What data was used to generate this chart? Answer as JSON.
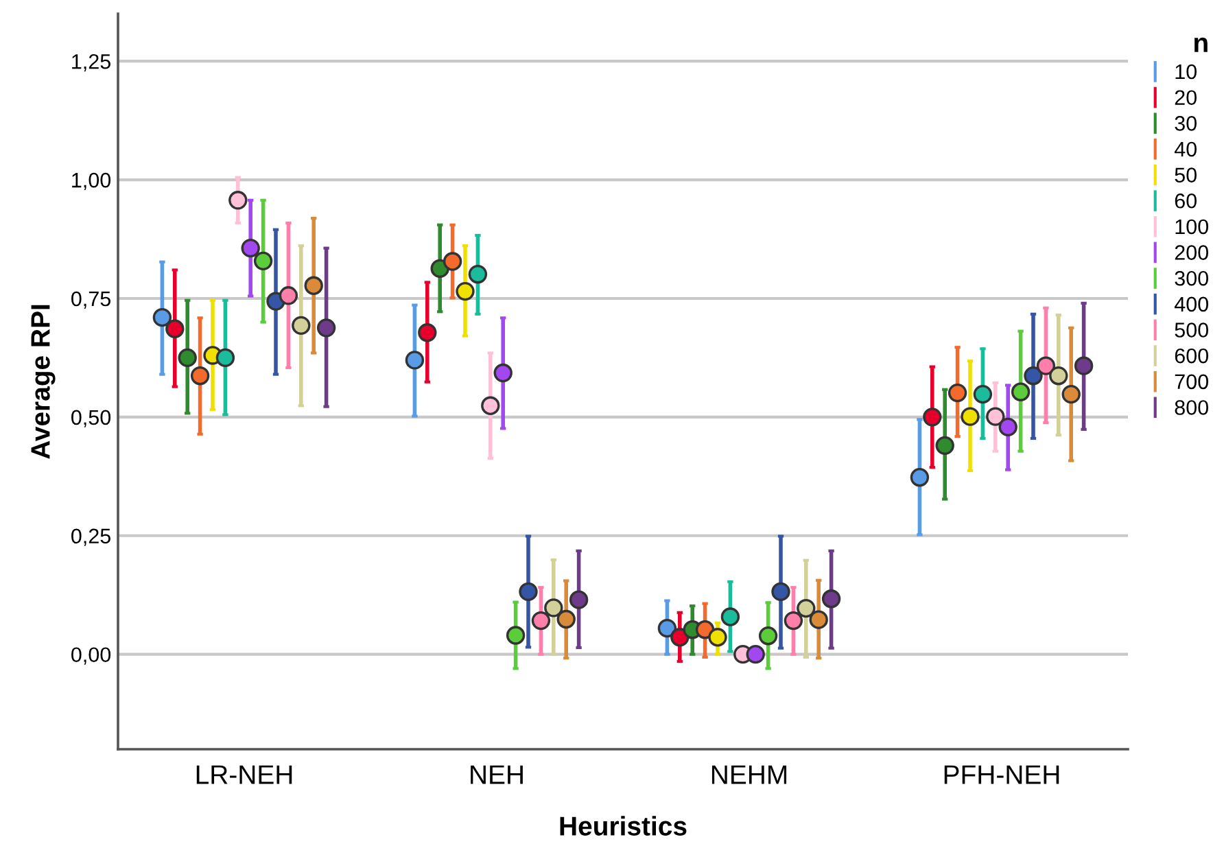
{
  "chart_data": {
    "type": "scatter",
    "xlabel": "Heuristics",
    "ylabel": "Average RPI",
    "legend_title": "n",
    "legend": "right",
    "grid": "y",
    "marker": "circle",
    "categories": [
      "LR-NEH",
      "NEH",
      "NEHM",
      "PFH-NEH"
    ],
    "ylim": [
      -0.2,
      1.35
    ],
    "yticks": [
      {
        "value": 0,
        "label": "0,00"
      },
      {
        "value": 0.25,
        "label": "0,25"
      },
      {
        "value": 0.5,
        "label": "0,50"
      },
      {
        "value": 0.75,
        "label": "0,75"
      },
      {
        "value": 1,
        "label": "1,00"
      },
      {
        "value": 1.25,
        "label": "1,25"
      }
    ],
    "series": [
      {
        "name": "10",
        "color": "#5a9be6",
        "values": [
          0.71,
          0.62,
          0.055,
          0.373
        ],
        "errors": [
          [
            0.59,
            0.827
          ],
          [
            0.502,
            0.736
          ],
          [
            0,
            0.113
          ],
          [
            0.252,
            0.495
          ]
        ]
      },
      {
        "name": "20",
        "color": "#e8002c",
        "values": [
          0.686,
          0.678,
          0.036,
          0.5
        ],
        "errors": [
          [
            0.564,
            0.81
          ],
          [
            0.574,
            0.784
          ],
          [
            -0.015,
            0.088
          ],
          [
            0.394,
            0.606
          ]
        ]
      },
      {
        "name": "30",
        "color": "#2e8b2e",
        "values": [
          0.625,
          0.813,
          0.052,
          0.44
        ],
        "errors": [
          [
            0.508,
            0.746
          ],
          [
            0.722,
            0.905
          ],
          [
            0,
            0.102
          ],
          [
            0.327,
            0.558
          ]
        ]
      },
      {
        "name": "40",
        "color": "#f26b2c",
        "values": [
          0.587,
          0.828,
          0.052,
          0.551
        ],
        "errors": [
          [
            0.464,
            0.709
          ],
          [
            0.751,
            0.905
          ],
          [
            -0.006,
            0.107
          ],
          [
            0.459,
            0.647
          ]
        ]
      },
      {
        "name": "50",
        "color": "#f0e000",
        "values": [
          0.63,
          0.765,
          0.036,
          0.501
        ],
        "errors": [
          [
            0.516,
            0.746
          ],
          [
            0.671,
            0.861
          ],
          [
            0,
            0.066
          ],
          [
            0.387,
            0.618
          ]
        ]
      },
      {
        "name": "60",
        "color": "#1abc9c",
        "values": [
          0.625,
          0.801,
          0.079,
          0.548
        ],
        "errors": [
          [
            0.505,
            0.746
          ],
          [
            0.717,
            0.883
          ],
          [
            0.006,
            0.153
          ],
          [
            0.455,
            0.644
          ]
        ]
      },
      {
        "name": "100",
        "color": "#ffc0d8",
        "values": [
          0.957,
          0.524,
          0.0,
          0.501
        ],
        "errors": [
          [
            0.909,
            1.005
          ],
          [
            0.413,
            0.635
          ],
          null,
          [
            0.428,
            0.572
          ]
        ]
      },
      {
        "name": "200",
        "color": "#a347f0",
        "values": [
          0.856,
          0.593,
          0.0,
          0.479
        ],
        "errors": [
          [
            0.755,
            0.957
          ],
          [
            0.476,
            0.709
          ],
          null,
          [
            0.389,
            0.567
          ]
        ]
      },
      {
        "name": "300",
        "color": "#5ccc3a",
        "values": [
          0.829,
          0.04,
          0.039,
          0.553
        ],
        "errors": [
          [
            0.7,
            0.957
          ],
          [
            -0.03,
            0.11
          ],
          [
            -0.03,
            0.109
          ],
          [
            0.428,
            0.681
          ]
        ]
      },
      {
        "name": "400",
        "color": "#3556a6",
        "values": [
          0.744,
          0.132,
          0.132,
          0.587
        ],
        "errors": [
          [
            0.59,
            0.895
          ],
          [
            0.015,
            0.249
          ],
          [
            0.013,
            0.249
          ],
          [
            0.455,
            0.717
          ]
        ]
      },
      {
        "name": "500",
        "color": "#ff7fab",
        "values": [
          0.756,
          0.071,
          0.071,
          0.608
        ],
        "errors": [
          [
            0.604,
            0.909
          ],
          [
            0,
            0.141
          ],
          [
            0,
            0.141
          ],
          [
            0.488,
            0.73
          ]
        ]
      },
      {
        "name": "600",
        "color": "#d4d09a",
        "values": [
          0.693,
          0.098,
          0.097,
          0.587
        ],
        "errors": [
          [
            0.524,
            0.861
          ],
          [
            0,
            0.199
          ],
          [
            -0.006,
            0.198
          ],
          [
            0.462,
            0.715
          ]
        ]
      },
      {
        "name": "700",
        "color": "#d98b3a",
        "values": [
          0.777,
          0.074,
          0.073,
          0.548
        ],
        "errors": [
          [
            0.635,
            0.919
          ],
          [
            -0.008,
            0.155
          ],
          [
            -0.008,
            0.156
          ],
          [
            0.408,
            0.688
          ]
        ]
      },
      {
        "name": "800",
        "color": "#6e3a8a",
        "values": [
          0.688,
          0.115,
          0.117,
          0.608
        ],
        "errors": [
          [
            0.522,
            0.856
          ],
          [
            0.014,
            0.218
          ],
          [
            0.013,
            0.218
          ],
          [
            0.474,
            0.74
          ]
        ]
      }
    ]
  }
}
